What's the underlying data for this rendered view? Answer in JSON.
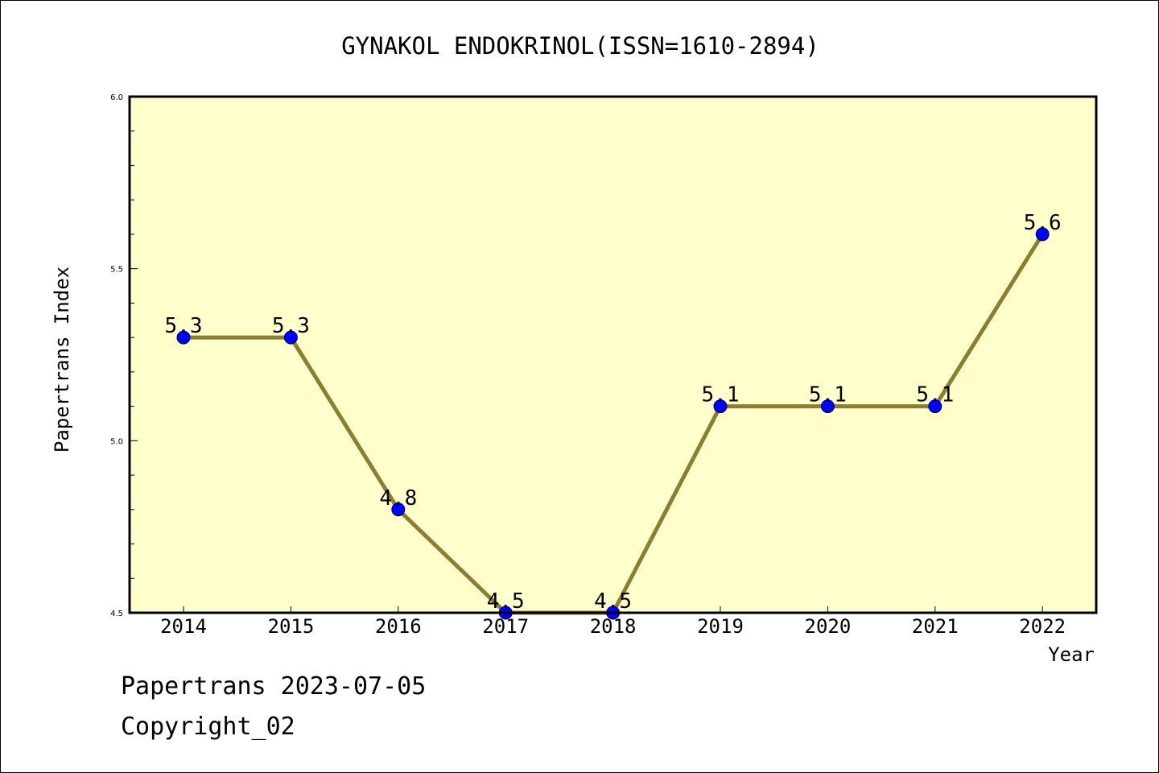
{
  "chart_data": {
    "type": "line",
    "title": "GYNAKOL ENDOKRINOL(ISSN=1610-2894)",
    "xlabel": "Year",
    "ylabel": "Papertrans Index",
    "categories": [
      "2014",
      "2015",
      "2016",
      "2017",
      "2018",
      "2019",
      "2020",
      "2021",
      "2022"
    ],
    "values": [
      5.3,
      5.3,
      4.8,
      4.5,
      4.5,
      5.1,
      5.1,
      5.1,
      5.6
    ],
    "data_labels": [
      "5.3",
      "5.3",
      "4.8",
      "4.5",
      "4.5",
      "5.1",
      "5.1",
      "5.1",
      "5.6"
    ],
    "ylim": [
      4.5,
      6.0
    ],
    "yticks": [
      "4.5",
      "5.0",
      "5.5",
      "6.0"
    ],
    "grid": false,
    "colors": {
      "plot_background": "#ffffcc",
      "line": "#8b7d32",
      "marker": "#0000ff"
    }
  },
  "footer": {
    "date_text": "Papertrans 2023-07-05",
    "copyright_text": "Copyright_02"
  }
}
